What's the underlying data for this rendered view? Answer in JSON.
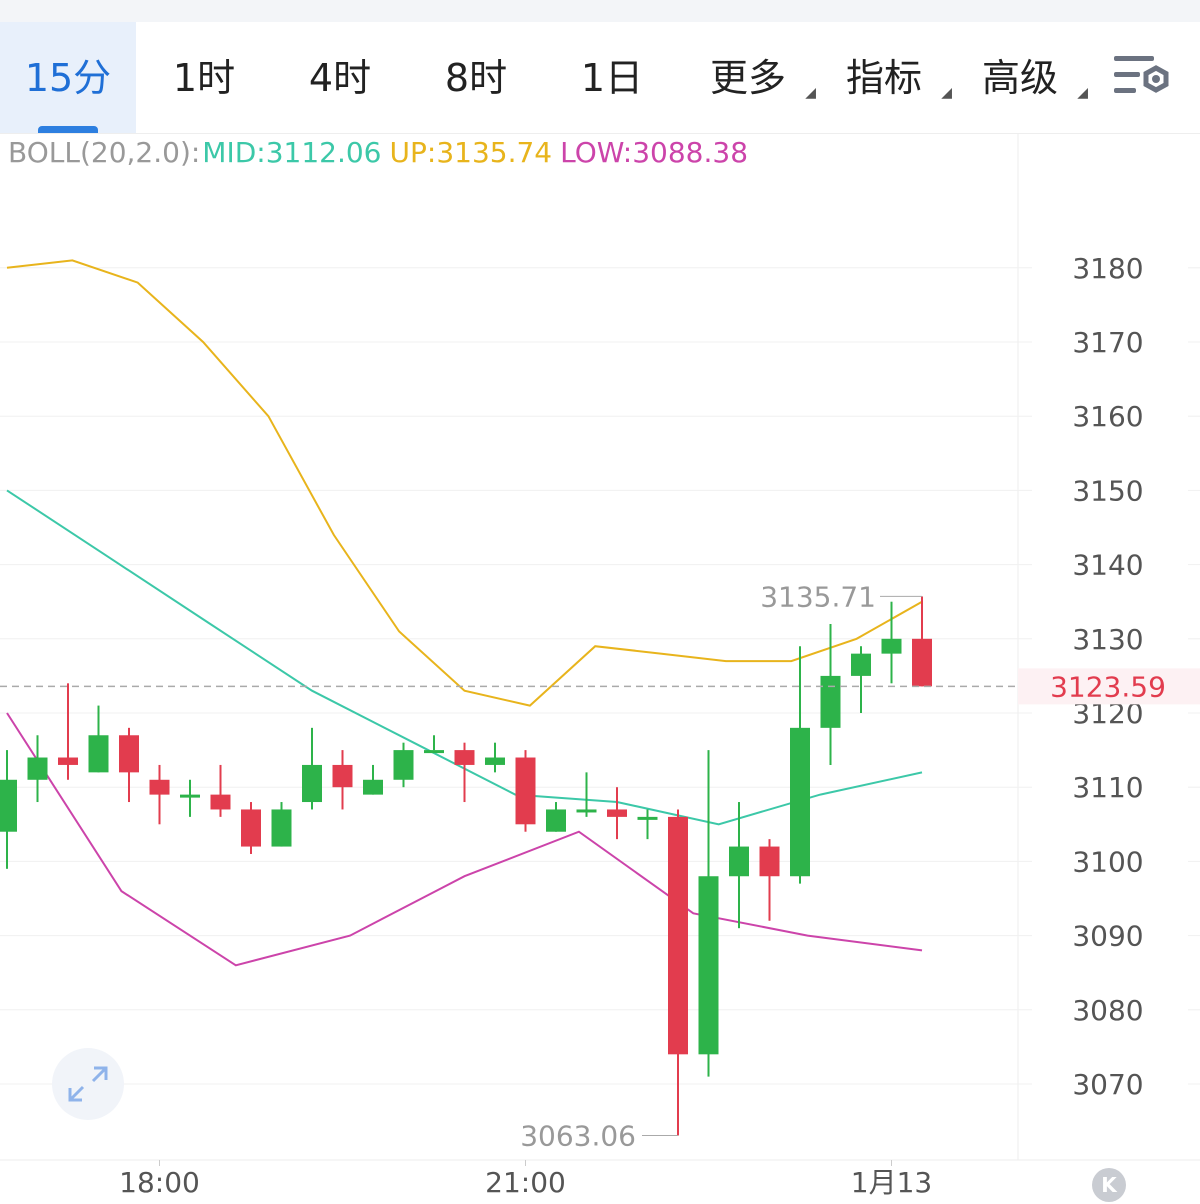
{
  "tabs": [
    {
      "label": "15分",
      "active": true
    },
    {
      "label": "1时",
      "active": false
    },
    {
      "label": "4时",
      "active": false
    },
    {
      "label": "8时",
      "active": false
    },
    {
      "label": "1日",
      "active": false
    },
    {
      "label": "更多",
      "active": false,
      "dropdown": true
    },
    {
      "label": "指标",
      "active": false,
      "dropdown": true
    },
    {
      "label": "高级",
      "active": false,
      "dropdown": true
    }
  ],
  "legend": {
    "name": "BOLL(20,2.0):",
    "mid": "MID:3112.06",
    "up": "UP:3135.74",
    "low": "LOW:3088.38"
  },
  "colors": {
    "accent": "#1f6fd6",
    "up_candle": "#2db34a",
    "down_candle": "#e23c4e",
    "mid_line": "#3cc8a8",
    "upper_line": "#e8b41c",
    "lower_line": "#cc44aa",
    "legend_name": "#999999"
  },
  "k_button": "K",
  "chart_data": {
    "type": "candlestick",
    "indicator": "BOLL(20,2.0)",
    "ylim": [
      3060.9,
      3194.8
    ],
    "y_ticks": [
      3180,
      3170,
      3160,
      3150,
      3140,
      3130,
      3120,
      3110,
      3100,
      3090,
      3080,
      3070
    ],
    "x_ticks": [
      {
        "label": "18:00",
        "index": 5
      },
      {
        "label": "21:00",
        "index": 17
      },
      {
        "label": "1月13",
        "index": 29
      }
    ],
    "current_price": 3123.59,
    "annotations": {
      "high": {
        "label": "3135.71",
        "value": 3135.71,
        "index": 30
      },
      "low": {
        "label": "3063.06",
        "value": 3063.06,
        "index": 22
      }
    },
    "candles": [
      {
        "o": 3104,
        "h": 3115,
        "l": 3099,
        "c": 3111
      },
      {
        "o": 3111,
        "h": 3117,
        "l": 3108,
        "c": 3114
      },
      {
        "o": 3114,
        "h": 3124,
        "l": 3111,
        "c": 3113
      },
      {
        "o": 3112,
        "h": 3121,
        "l": 3112,
        "c": 3117
      },
      {
        "o": 3117,
        "h": 3118,
        "l": 3108,
        "c": 3112
      },
      {
        "o": 3111,
        "h": 3113,
        "l": 3105,
        "c": 3109
      },
      {
        "o": 3109,
        "h": 3111,
        "l": 3106,
        "c": 3109
      },
      {
        "o": 3109,
        "h": 3113,
        "l": 3106,
        "c": 3107
      },
      {
        "o": 3107,
        "h": 3108,
        "l": 3101,
        "c": 3102
      },
      {
        "o": 3102,
        "h": 3108,
        "l": 3102,
        "c": 3107
      },
      {
        "o": 3108,
        "h": 3118,
        "l": 3107,
        "c": 3113
      },
      {
        "o": 3113,
        "h": 3115,
        "l": 3107,
        "c": 3110
      },
      {
        "o": 3109,
        "h": 3113,
        "l": 3109,
        "c": 3111
      },
      {
        "o": 3111,
        "h": 3116,
        "l": 3110,
        "c": 3115
      },
      {
        "o": 3115,
        "h": 3117,
        "l": 3115,
        "c": 3115
      },
      {
        "o": 3115,
        "h": 3116,
        "l": 3108,
        "c": 3113
      },
      {
        "o": 3113,
        "h": 3116,
        "l": 3112,
        "c": 3114
      },
      {
        "o": 3114,
        "h": 3115,
        "l": 3104,
        "c": 3105
      },
      {
        "o": 3104,
        "h": 3108,
        "l": 3104,
        "c": 3107
      },
      {
        "o": 3107,
        "h": 3112,
        "l": 3106,
        "c": 3107
      },
      {
        "o": 3107,
        "h": 3110,
        "l": 3103,
        "c": 3106
      },
      {
        "o": 3106,
        "h": 3107,
        "l": 3103,
        "c": 3106
      },
      {
        "o": 3106,
        "h": 3107,
        "l": 3063.06,
        "c": 3074
      },
      {
        "o": 3074,
        "h": 3115,
        "l": 3071,
        "c": 3098
      },
      {
        "o": 3098,
        "h": 3108,
        "l": 3091,
        "c": 3102
      },
      {
        "o": 3102,
        "h": 3103,
        "l": 3092,
        "c": 3098
      },
      {
        "o": 3098,
        "h": 3129,
        "l": 3097,
        "c": 3118
      },
      {
        "o": 3118,
        "h": 3132,
        "l": 3113,
        "c": 3125
      },
      {
        "o": 3125,
        "h": 3129,
        "l": 3120,
        "c": 3128
      },
      {
        "o": 3128,
        "h": 3135,
        "l": 3124,
        "c": 3130
      },
      {
        "o": 3130,
        "h": 3135.71,
        "l": 3123.59,
        "c": 3123.59
      }
    ],
    "boll": {
      "up": [
        3180,
        3181,
        3178,
        3170,
        3160,
        3144,
        3131,
        3123,
        3121,
        3129,
        3128,
        3127,
        3127,
        3130,
        3135
      ],
      "mid": [
        3150,
        3141,
        3132,
        3123,
        3116,
        3109,
        3108,
        3105,
        3109,
        3112
      ],
      "low": [
        3120,
        3096,
        3086,
        3090,
        3098,
        3104,
        3093,
        3090,
        3088
      ]
    }
  }
}
